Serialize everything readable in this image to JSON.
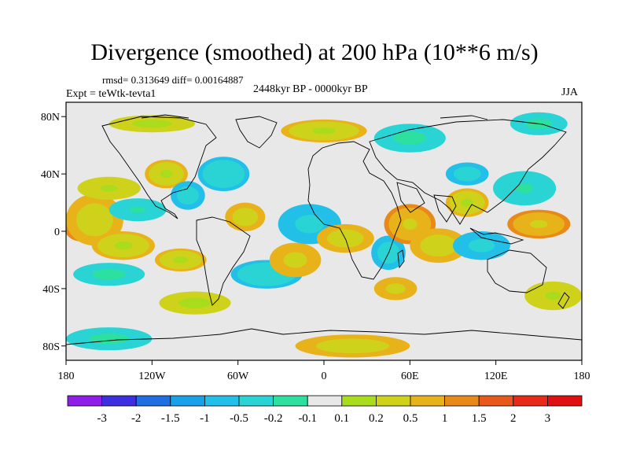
{
  "title": "Divergence (smoothed) at 200 hPa (10**6 m/s)",
  "stats": "rmsd= 0.313649 diff= 0.00164887",
  "experiment": "Expt = teWtk-tevta1",
  "period": "2448kyr BP - 0000kyr BP",
  "season": "JJA",
  "axes": {
    "lat_ticks": [
      {
        "value": 80,
        "label": "80N"
      },
      {
        "value": 40,
        "label": "40N"
      },
      {
        "value": 0,
        "label": "0"
      },
      {
        "value": -40,
        "label": "40S"
      },
      {
        "value": -80,
        "label": "80S"
      }
    ],
    "lon_ticks": [
      {
        "value": -180,
        "label": "180"
      },
      {
        "value": -120,
        "label": "120W"
      },
      {
        "value": -60,
        "label": "60W"
      },
      {
        "value": 0,
        "label": "0"
      },
      {
        "value": 60,
        "label": "60E"
      },
      {
        "value": 120,
        "label": "120E"
      },
      {
        "value": 180,
        "label": "180"
      }
    ],
    "lon_range": [
      -180,
      180
    ],
    "lat_range": [
      -90,
      90
    ]
  },
  "colorbar": {
    "labels": [
      "-3",
      "-2",
      "-1.5",
      "-1",
      "-0.5",
      "-0.2",
      "-0.1",
      "0.1",
      "0.2",
      "0.5",
      "1",
      "1.5",
      "2",
      "3"
    ],
    "colors": [
      "#8f1fe6",
      "#3d2ee0",
      "#1f6fe0",
      "#1aa0e8",
      "#22bfe8",
      "#2ad4d4",
      "#2de0a0",
      "#e8e8e8",
      "#a8dc1c",
      "#cfd21a",
      "#e8b21a",
      "#e88a1a",
      "#e8581a",
      "#e82a1a",
      "#e01010"
    ]
  },
  "blobs": [
    {
      "lon": -170,
      "lat": 5,
      "rx": 12,
      "ry": 12,
      "v": 1.2
    },
    {
      "lon": -160,
      "lat": 8,
      "rx": 20,
      "ry": 18,
      "v": 0.6
    },
    {
      "lon": -150,
      "lat": 30,
      "rx": 22,
      "ry": 8,
      "v": 0.4
    },
    {
      "lon": -140,
      "lat": -10,
      "rx": 22,
      "ry": 10,
      "v": 0.5
    },
    {
      "lon": -100,
      "lat": -20,
      "rx": 18,
      "ry": 8,
      "v": 0.5
    },
    {
      "lon": -130,
      "lat": 15,
      "rx": 20,
      "ry": 8,
      "v": -0.4
    },
    {
      "lon": -150,
      "lat": -30,
      "rx": 25,
      "ry": 8,
      "v": -0.3
    },
    {
      "lon": -110,
      "lat": 40,
      "rx": 15,
      "ry": 10,
      "v": 0.5
    },
    {
      "lon": -95,
      "lat": 25,
      "rx": 12,
      "ry": 10,
      "v": -0.6
    },
    {
      "lon": -70,
      "lat": 40,
      "rx": 18,
      "ry": 12,
      "v": -0.5
    },
    {
      "lon": -55,
      "lat": 10,
      "rx": 14,
      "ry": 10,
      "v": 0.6
    },
    {
      "lon": -40,
      "lat": -30,
      "rx": 25,
      "ry": 10,
      "v": -0.5
    },
    {
      "lon": -20,
      "lat": -20,
      "rx": 18,
      "ry": 12,
      "v": 0.8
    },
    {
      "lon": -10,
      "lat": 5,
      "rx": 22,
      "ry": 14,
      "v": -0.8
    },
    {
      "lon": 15,
      "lat": -5,
      "rx": 20,
      "ry": 10,
      "v": 0.6
    },
    {
      "lon": 45,
      "lat": -15,
      "rx": 12,
      "ry": 12,
      "v": -0.6
    },
    {
      "lon": 60,
      "lat": 5,
      "rx": 18,
      "ry": 14,
      "v": 1.0
    },
    {
      "lon": 80,
      "lat": -10,
      "rx": 20,
      "ry": 12,
      "v": 0.6
    },
    {
      "lon": 50,
      "lat": -40,
      "rx": 15,
      "ry": 8,
      "v": 0.8
    },
    {
      "lon": 100,
      "lat": 40,
      "rx": 15,
      "ry": 8,
      "v": -0.6
    },
    {
      "lon": 110,
      "lat": -10,
      "rx": 20,
      "ry": 10,
      "v": -0.7
    },
    {
      "lon": 150,
      "lat": 5,
      "rx": 22,
      "ry": 10,
      "v": 1.0
    },
    {
      "lon": 140,
      "lat": 30,
      "rx": 22,
      "ry": 12,
      "v": -0.4
    },
    {
      "lon": 100,
      "lat": 20,
      "rx": 15,
      "ry": 10,
      "v": 0.5
    },
    {
      "lon": 0,
      "lat": 70,
      "rx": 30,
      "ry": 8,
      "v": 0.5
    },
    {
      "lon": 60,
      "lat": 65,
      "rx": 25,
      "ry": 10,
      "v": -0.3
    },
    {
      "lon": -120,
      "lat": 75,
      "rx": 30,
      "ry": 6,
      "v": 0.3
    },
    {
      "lon": 150,
      "lat": 75,
      "rx": 20,
      "ry": 8,
      "v": -0.3
    },
    {
      "lon": 20,
      "lat": -80,
      "rx": 40,
      "ry": 8,
      "v": 0.6
    },
    {
      "lon": -150,
      "lat": -75,
      "rx": 30,
      "ry": 8,
      "v": -0.3
    },
    {
      "lon": 160,
      "lat": -45,
      "rx": 20,
      "ry": 10,
      "v": 0.4
    },
    {
      "lon": -90,
      "lat": -50,
      "rx": 25,
      "ry": 8,
      "v": 0.3
    }
  ]
}
